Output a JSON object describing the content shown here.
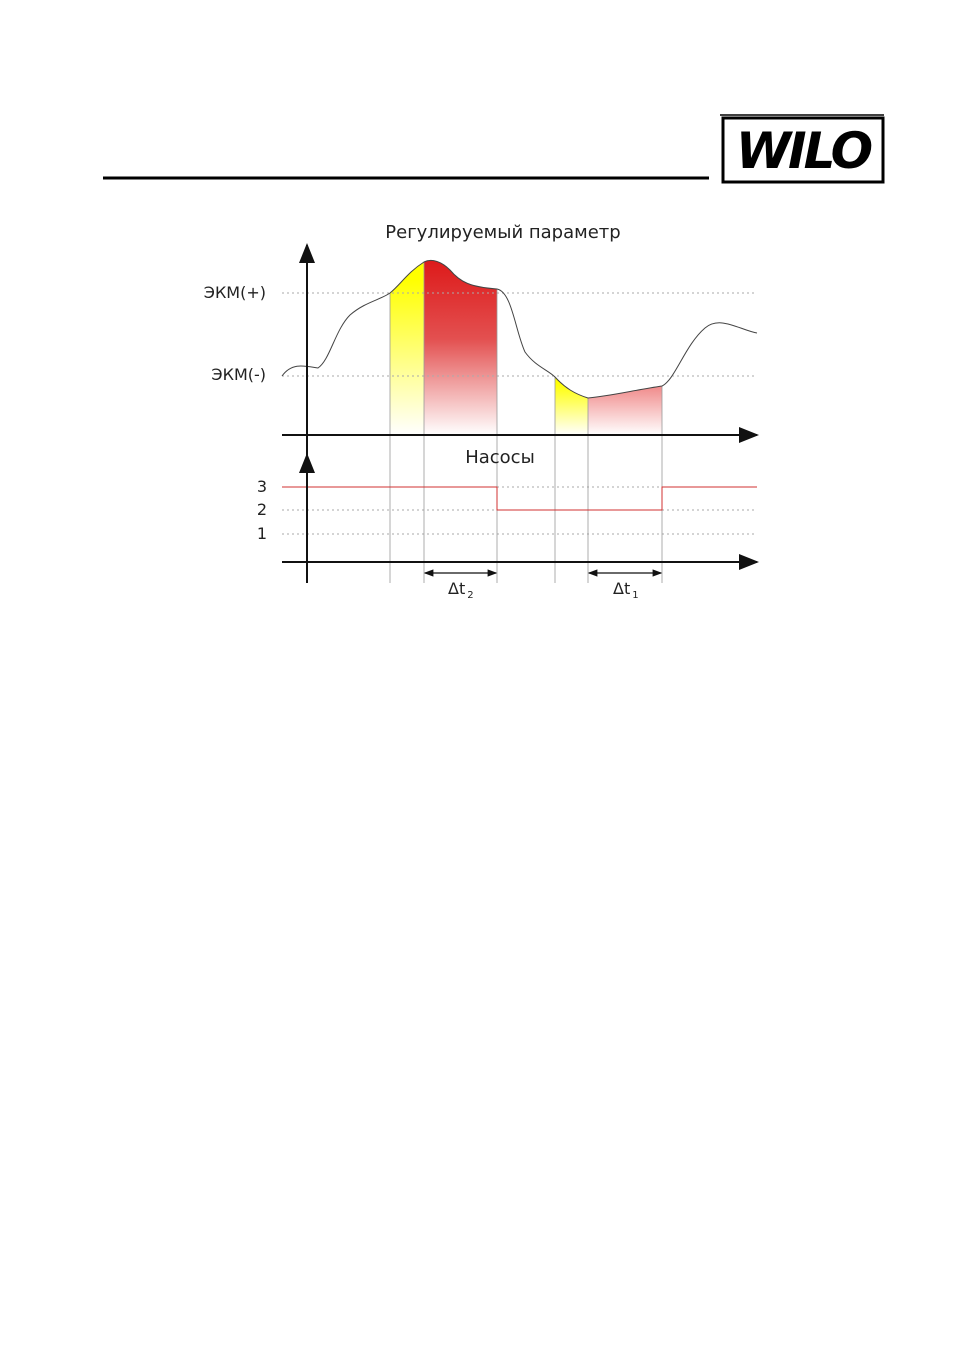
{
  "header": {
    "logo": "WILO"
  },
  "diagram": {
    "top_chart": {
      "title": "Регулируемый параметр",
      "levels": [
        "ЭКМ(+)",
        "ЭКМ(-)"
      ]
    },
    "bottom_chart": {
      "title": "Насосы",
      "levels": [
        "3",
        "2",
        "1"
      ]
    },
    "intervals": [
      {
        "label": "Δt",
        "subscript": "2"
      },
      {
        "label": "Δt",
        "subscript": "1"
      }
    ]
  }
}
